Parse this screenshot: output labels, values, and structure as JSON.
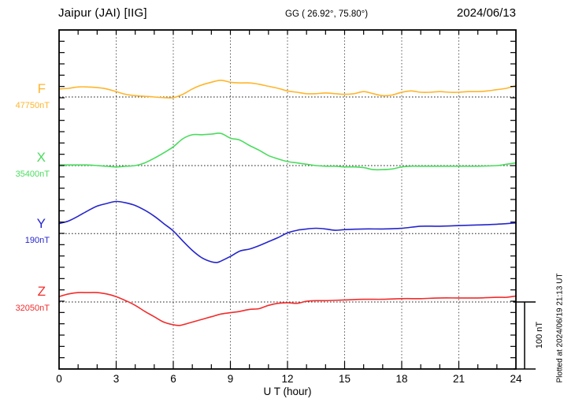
{
  "header": {
    "station": "Jaipur (JAI)  [IIG]",
    "coords": "GG ( 26.92°,  75.80°)",
    "date": "2024/06/13"
  },
  "footer_note": "Plotted at 2024/06/19 21:13 UT",
  "colors": {
    "F": "#FFB52B",
    "X": "#4ADC5E",
    "Y": "#2525CC",
    "Z": "#F22C2C",
    "frame": "#000000",
    "gridline": "#555555",
    "baseline": "#222222"
  },
  "chart_data": {
    "type": "line",
    "title": "Jaipur (JAI) [IIG] magnetogram 2024/06/13",
    "xlabel": "U T (hour)",
    "x_range": [
      0,
      24
    ],
    "x_ticks": [
      "0",
      "3",
      "6",
      "9",
      "12",
      "15",
      "18",
      "21",
      "24"
    ],
    "grid": "vertical dotted every 3 h; dotted horizontal baseline per component",
    "legend_position": "left margin, one colored label per component",
    "scale_bar": {
      "label": "100 nT",
      "nT": 100
    },
    "y_unit": "nT offset from component baseline",
    "series": [
      {
        "name": "F",
        "baseline_label": "47750nT",
        "baseline_value": 47750,
        "points": [
          [
            0,
            12
          ],
          [
            0.5,
            13
          ],
          [
            1,
            15
          ],
          [
            1.5,
            15
          ],
          [
            2,
            14
          ],
          [
            2.5,
            12
          ],
          [
            3,
            8
          ],
          [
            3.5,
            4
          ],
          [
            4,
            2
          ],
          [
            4.5,
            1
          ],
          [
            5,
            0
          ],
          [
            5.5,
            -1
          ],
          [
            6,
            -1
          ],
          [
            6.5,
            4
          ],
          [
            7,
            12
          ],
          [
            7.5,
            18
          ],
          [
            8,
            22
          ],
          [
            8.5,
            25
          ],
          [
            9,
            22
          ],
          [
            9.5,
            21
          ],
          [
            10,
            21
          ],
          [
            10.5,
            19
          ],
          [
            11,
            16
          ],
          [
            11.5,
            13
          ],
          [
            12,
            9
          ],
          [
            12.5,
            7
          ],
          [
            13,
            5
          ],
          [
            13.5,
            5
          ],
          [
            14,
            6
          ],
          [
            14.5,
            5
          ],
          [
            15,
            4
          ],
          [
            15.5,
            5
          ],
          [
            16,
            8
          ],
          [
            16.5,
            5
          ],
          [
            17,
            2
          ],
          [
            17.5,
            3
          ],
          [
            18,
            7
          ],
          [
            18.5,
            9
          ],
          [
            19,
            7
          ],
          [
            19.5,
            7
          ],
          [
            20,
            8
          ],
          [
            20.5,
            7
          ],
          [
            21,
            7
          ],
          [
            21.5,
            8
          ],
          [
            22,
            8
          ],
          [
            22.5,
            9
          ],
          [
            23,
            11
          ],
          [
            23.5,
            13
          ],
          [
            24,
            17
          ]
        ]
      },
      {
        "name": "X",
        "baseline_label": "35400nT",
        "baseline_value": 35400,
        "points": [
          [
            0,
            1
          ],
          [
            0.5,
            1
          ],
          [
            1,
            1
          ],
          [
            1.5,
            1
          ],
          [
            2,
            0
          ],
          [
            2.5,
            -1
          ],
          [
            3,
            -2
          ],
          [
            3.5,
            -1
          ],
          [
            4,
            0
          ],
          [
            4.5,
            4
          ],
          [
            5,
            11
          ],
          [
            5.5,
            19
          ],
          [
            6,
            28
          ],
          [
            6.5,
            40
          ],
          [
            7,
            46
          ],
          [
            7.5,
            46
          ],
          [
            8,
            47
          ],
          [
            8.5,
            48
          ],
          [
            9,
            41
          ],
          [
            9.5,
            38
          ],
          [
            10,
            30
          ],
          [
            10.5,
            23
          ],
          [
            11,
            15
          ],
          [
            11.5,
            10
          ],
          [
            12,
            6
          ],
          [
            12.5,
            4
          ],
          [
            13,
            2
          ],
          [
            13.5,
            0
          ],
          [
            14,
            -1
          ],
          [
            14.5,
            -1
          ],
          [
            15,
            -2
          ],
          [
            15.5,
            -2
          ],
          [
            16,
            -3
          ],
          [
            16.5,
            -6
          ],
          [
            17,
            -6
          ],
          [
            17.5,
            -5
          ],
          [
            18,
            -2
          ],
          [
            18.5,
            -1
          ],
          [
            19,
            -1
          ],
          [
            20,
            -1
          ],
          [
            21,
            -1
          ],
          [
            22,
            -1
          ],
          [
            23,
            0
          ],
          [
            23.5,
            2
          ],
          [
            24,
            4
          ]
        ]
      },
      {
        "name": "Y",
        "baseline_label": "190nT",
        "baseline_value": 190,
        "points": [
          [
            0,
            15
          ],
          [
            0.5,
            19
          ],
          [
            1,
            26
          ],
          [
            1.5,
            34
          ],
          [
            2,
            41
          ],
          [
            2.5,
            45
          ],
          [
            3,
            48
          ],
          [
            3.5,
            46
          ],
          [
            4,
            42
          ],
          [
            4.5,
            35
          ],
          [
            5,
            26
          ],
          [
            5.5,
            15
          ],
          [
            6,
            4
          ],
          [
            6.5,
            -11
          ],
          [
            7,
            -25
          ],
          [
            7.5,
            -36
          ],
          [
            8,
            -42
          ],
          [
            8.3,
            -43
          ],
          [
            8.5,
            -41
          ],
          [
            9,
            -34
          ],
          [
            9.5,
            -26
          ],
          [
            10,
            -23
          ],
          [
            10.5,
            -18
          ],
          [
            11,
            -12
          ],
          [
            11.5,
            -6
          ],
          [
            12,
            1
          ],
          [
            12.5,
            5
          ],
          [
            13,
            7
          ],
          [
            13.5,
            8
          ],
          [
            14,
            7
          ],
          [
            14.5,
            5
          ],
          [
            15,
            6
          ],
          [
            16,
            7
          ],
          [
            17,
            7
          ],
          [
            18,
            8
          ],
          [
            19,
            11
          ],
          [
            20,
            11
          ],
          [
            21,
            12
          ],
          [
            22,
            13
          ],
          [
            23,
            14
          ],
          [
            24,
            16
          ]
        ]
      },
      {
        "name": "Z",
        "baseline_label": "32050nT",
        "baseline_value": 32050,
        "points": [
          [
            0,
            8
          ],
          [
            0.5,
            12
          ],
          [
            1,
            14
          ],
          [
            1.5,
            14
          ],
          [
            2,
            14
          ],
          [
            2.5,
            12
          ],
          [
            3,
            8
          ],
          [
            3.5,
            2
          ],
          [
            4,
            -5
          ],
          [
            4.5,
            -14
          ],
          [
            5,
            -22
          ],
          [
            5.5,
            -30
          ],
          [
            6,
            -34
          ],
          [
            6.3,
            -35
          ],
          [
            6.5,
            -34
          ],
          [
            7,
            -30
          ],
          [
            7.5,
            -26
          ],
          [
            8,
            -22
          ],
          [
            8.5,
            -18
          ],
          [
            9,
            -16
          ],
          [
            9.5,
            -14
          ],
          [
            10,
            -11
          ],
          [
            10.5,
            -10
          ],
          [
            11,
            -5
          ],
          [
            11.5,
            -2
          ],
          [
            12,
            -1
          ],
          [
            12.5,
            -2
          ],
          [
            13,
            1
          ],
          [
            13.5,
            2
          ],
          [
            14,
            2
          ],
          [
            15,
            3
          ],
          [
            16,
            4
          ],
          [
            17,
            4
          ],
          [
            18,
            5
          ],
          [
            19,
            5
          ],
          [
            20,
            6
          ],
          [
            21,
            6
          ],
          [
            22,
            6
          ],
          [
            23,
            7
          ],
          [
            23.5,
            7
          ],
          [
            24,
            9
          ]
        ]
      }
    ]
  }
}
